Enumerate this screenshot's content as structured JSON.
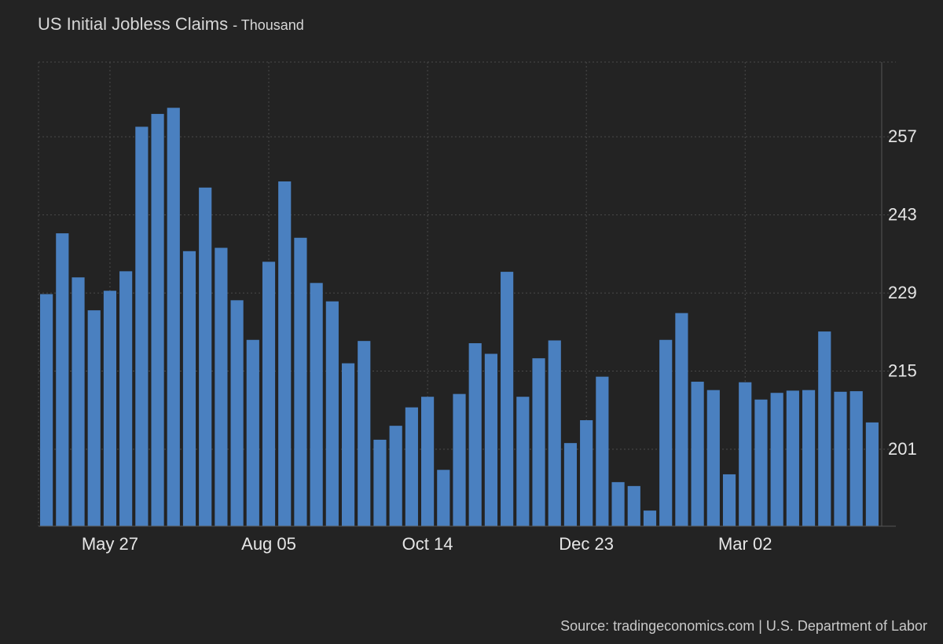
{
  "title": "US Initial Jobless Claims",
  "subtitle": "- Thousand",
  "source": "Source: tradingeconomics.com | U.S. Department of Labor",
  "colors": {
    "background": "#232323",
    "bar": "#4a80c0",
    "grid": "#4a4a4a",
    "axis_text": "#e6e6e6"
  },
  "chart_data": {
    "type": "bar",
    "categories": [
      "2023-04-29",
      "2023-05-06",
      "2023-05-13",
      "2023-05-20",
      "2023-05-27",
      "2023-06-03",
      "2023-06-10",
      "2023-06-17",
      "2023-06-24",
      "2023-07-01",
      "2023-07-08",
      "2023-07-15",
      "2023-07-22",
      "2023-07-29",
      "2023-08-05",
      "2023-08-12",
      "2023-08-19",
      "2023-08-26",
      "2023-09-02",
      "2023-09-09",
      "2023-09-16",
      "2023-09-23",
      "2023-09-30",
      "2023-10-07",
      "2023-10-14",
      "2023-10-21",
      "2023-10-28",
      "2023-11-04",
      "2023-11-11",
      "2023-11-18",
      "2023-11-25",
      "2023-12-02",
      "2023-12-09",
      "2023-12-16",
      "2023-12-23",
      "2023-12-30",
      "2024-01-06",
      "2024-01-13",
      "2024-01-20",
      "2024-01-27",
      "2024-02-03",
      "2024-02-10",
      "2024-02-17",
      "2024-02-24",
      "2024-03-02",
      "2024-03-09",
      "2024-03-16",
      "2024-03-23",
      "2024-03-30",
      "2024-04-06",
      "2024-04-13",
      "2024-04-20",
      "2024-04-27"
    ],
    "values": [
      228.8,
      239.7,
      231.8,
      225.9,
      229.4,
      232.9,
      258.8,
      261.1,
      262.2,
      236.5,
      247.9,
      237.1,
      227.7,
      220.6,
      234.6,
      249.0,
      238.9,
      230.8,
      227.5,
      216.4,
      220.4,
      202.7,
      205.2,
      208.5,
      210.4,
      197.3,
      210.9,
      220.0,
      218.1,
      232.8,
      210.4,
      217.3,
      220.5,
      202.1,
      206.2,
      214.0,
      195.1,
      194.4,
      190.0,
      220.6,
      225.4,
      213.1,
      211.6,
      196.5,
      213.0,
      209.9,
      211.1,
      211.5,
      211.6,
      222.1,
      211.3,
      211.4,
      205.8
    ],
    "x_ticks": [
      {
        "label": "May 27",
        "index": 4.5
      },
      {
        "label": "Aug 05",
        "index": 14.5
      },
      {
        "label": "Oct 14",
        "index": 24.5
      },
      {
        "label": "Dec 23",
        "index": 34.5
      },
      {
        "label": "Mar 02",
        "index": 44.5
      }
    ],
    "y_ticks": [
      201,
      215,
      229,
      243,
      257
    ],
    "ylim": [
      187.2,
      270.4
    ],
    "xlabel": "",
    "ylabel": "",
    "grid": true,
    "legend": "none",
    "y_axis_side": "right"
  }
}
